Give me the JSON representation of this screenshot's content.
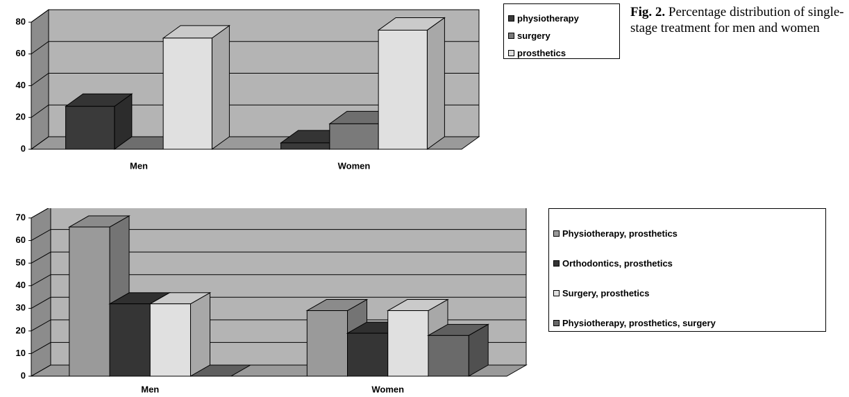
{
  "chart_data": [
    {
      "type": "bar3d",
      "categories": [
        "Men",
        "Women"
      ],
      "series": [
        {
          "name": "physiotherapy",
          "color": "#3a3a3a",
          "values": [
            27,
            4
          ]
        },
        {
          "name": "surgery",
          "color": "#7a7a7a",
          "values": [
            0,
            16
          ]
        },
        {
          "name": "prosthetics",
          "color": "#e0e0e0",
          "values": [
            70,
            75
          ]
        }
      ],
      "ylim": [
        0,
        80
      ],
      "yticks": [
        0,
        20,
        40,
        60,
        80
      ],
      "grid": true
    },
    {
      "type": "bar3d",
      "categories": [
        "Men",
        "Women"
      ],
      "series": [
        {
          "name": "Physiotherapy, prosthetics",
          "color": "#9a9a9a",
          "values": [
            66,
            29
          ]
        },
        {
          "name": "Orthodontics, prosthetics",
          "color": "#353535",
          "values": [
            32,
            19
          ]
        },
        {
          "name": "Surgery, prosthetics",
          "color": "#e0e0e0",
          "values": [
            32,
            29
          ]
        },
        {
          "name": "Physiotherapy, prosthetics, surgery",
          "color": "#6a6a6a",
          "values": [
            0,
            18
          ]
        }
      ],
      "ylim": [
        0,
        70
      ],
      "yticks": [
        0,
        10,
        20,
        30,
        40,
        50,
        60,
        70
      ],
      "grid": true
    }
  ],
  "caption": {
    "label": "Fig. 2.",
    "text": "Percentage distribution of single-stage treatment for men and women"
  }
}
